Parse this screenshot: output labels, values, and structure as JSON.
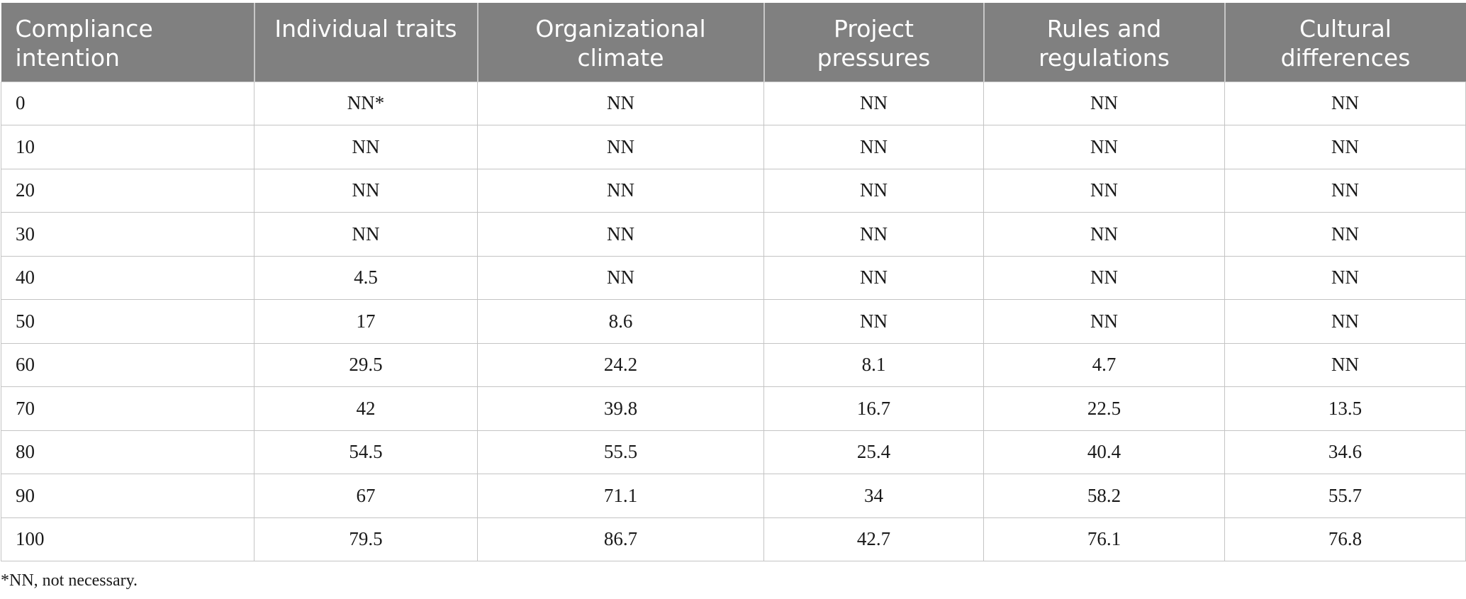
{
  "table": {
    "headers": [
      "Compliance\nintention",
      "Individual traits",
      "Organizational\nclimate",
      "Project\npressures",
      "Rules and\nregulations",
      "Cultural\ndifferences"
    ],
    "rows": [
      [
        "0",
        "NN*",
        "NN",
        "NN",
        "NN",
        "NN"
      ],
      [
        "10",
        "NN",
        "NN",
        "NN",
        "NN",
        "NN"
      ],
      [
        "20",
        "NN",
        "NN",
        "NN",
        "NN",
        "NN"
      ],
      [
        "30",
        "NN",
        "NN",
        "NN",
        "NN",
        "NN"
      ],
      [
        "40",
        "4.5",
        "NN",
        "NN",
        "NN",
        "NN"
      ],
      [
        "50",
        "17",
        "8.6",
        "NN",
        "NN",
        "NN"
      ],
      [
        "60",
        "29.5",
        "24.2",
        "8.1",
        "4.7",
        "NN"
      ],
      [
        "70",
        "42",
        "39.8",
        "16.7",
        "22.5",
        "13.5"
      ],
      [
        "80",
        "54.5",
        "55.5",
        "25.4",
        "40.4",
        "34.6"
      ],
      [
        "90",
        "67",
        "71.1",
        "34",
        "58.2",
        "55.7"
      ],
      [
        "100",
        "79.5",
        "86.7",
        "42.7",
        "76.1",
        "76.8"
      ]
    ]
  },
  "footnote": "*NN, not necessary.",
  "colors": {
    "header_bg": "#808080",
    "header_text": "#ffffff",
    "grid": "#c4c4c4"
  }
}
